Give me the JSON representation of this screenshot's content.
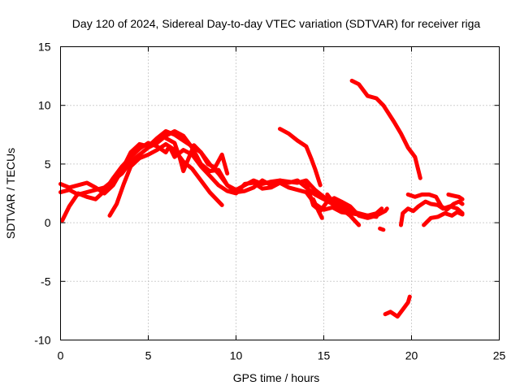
{
  "chart_data": {
    "type": "line",
    "title": "Day 120 of 2024, Sidereal Day-to-day VTEC variation (SDTVAR) for receiver riga",
    "xlabel": "GPS time / hours",
    "ylabel": "SDTVAR / TECUs",
    "xlim": [
      0,
      25
    ],
    "ylim": [
      -10,
      15
    ],
    "xticks": [
      0,
      5,
      10,
      15,
      20,
      25
    ],
    "yticks": [
      -10,
      -5,
      0,
      5,
      10,
      15
    ],
    "grid": true,
    "color": "#ff0000",
    "series": [
      {
        "name": "s1",
        "points": [
          [
            0.0,
            3.3
          ],
          [
            0.5,
            3.0
          ],
          [
            1.0,
            3.2
          ],
          [
            1.5,
            3.4
          ],
          [
            2.0,
            3.0
          ],
          [
            2.5,
            2.5
          ],
          [
            3.0,
            3.2
          ],
          [
            3.5,
            4.5
          ],
          [
            4.0,
            6.0
          ],
          [
            4.5,
            6.7
          ],
          [
            5.0,
            6.5
          ],
          [
            5.5,
            7.2
          ],
          [
            6.0,
            7.8
          ],
          [
            6.5,
            7.5
          ],
          [
            7.0,
            7.0
          ],
          [
            7.5,
            6.5
          ],
          [
            8.0,
            6.0
          ],
          [
            8.5,
            5.0
          ],
          [
            9.0,
            4.2
          ],
          [
            9.5,
            3.2
          ],
          [
            10.0,
            2.8
          ],
          [
            10.5,
            3.2
          ],
          [
            11.0,
            3.6
          ],
          [
            11.5,
            3.3
          ],
          [
            12.0,
            3.5
          ],
          [
            12.5,
            3.6
          ],
          [
            13.0,
            3.5
          ],
          [
            13.5,
            3.4
          ],
          [
            14.0,
            3.6
          ],
          [
            14.5,
            2.8
          ],
          [
            15.0,
            2.2
          ],
          [
            15.5,
            1.8
          ],
          [
            16.0,
            1.5
          ],
          [
            16.5,
            1.0
          ],
          [
            17.0,
            0.8
          ],
          [
            17.5,
            0.6
          ],
          [
            18.0,
            0.8
          ],
          [
            18.3,
            1.2
          ]
        ]
      },
      {
        "name": "s2",
        "points": [
          [
            0.0,
            2.6
          ],
          [
            0.5,
            2.8
          ],
          [
            1.0,
            2.4
          ],
          [
            1.5,
            2.6
          ],
          [
            2.0,
            2.8
          ],
          [
            2.5,
            3.0
          ],
          [
            3.0,
            3.6
          ],
          [
            3.5,
            4.2
          ],
          [
            4.0,
            5.2
          ],
          [
            4.5,
            5.8
          ],
          [
            5.0,
            6.4
          ],
          [
            5.5,
            6.8
          ],
          [
            6.0,
            7.4
          ],
          [
            6.5,
            7.8
          ],
          [
            7.0,
            7.4
          ],
          [
            7.5,
            6.4
          ],
          [
            8.0,
            5.0
          ],
          [
            8.5,
            4.4
          ],
          [
            9.0,
            4.5
          ],
          [
            9.5,
            3.2
          ],
          [
            10.0,
            2.6
          ],
          [
            10.5,
            2.7
          ],
          [
            11.0,
            3.0
          ],
          [
            11.5,
            3.6
          ],
          [
            12.0,
            3.2
          ],
          [
            12.5,
            3.6
          ],
          [
            13.0,
            3.4
          ],
          [
            13.5,
            3.6
          ],
          [
            14.0,
            3.0
          ],
          [
            14.5,
            2.4
          ],
          [
            15.0,
            2.0
          ],
          [
            15.5,
            1.6
          ],
          [
            16.0,
            1.2
          ]
        ]
      },
      {
        "name": "s3",
        "points": [
          [
            0.1,
            0.2
          ],
          [
            0.5,
            1.4
          ],
          [
            1.0,
            2.5
          ],
          [
            1.5,
            2.2
          ],
          [
            2.0,
            2.0
          ],
          [
            2.5,
            2.7
          ],
          [
            3.0,
            3.8
          ],
          [
            3.5,
            4.8
          ],
          [
            4.0,
            5.6
          ],
          [
            4.5,
            6.3
          ],
          [
            5.0,
            6.8
          ],
          [
            5.5,
            6.5
          ],
          [
            6.0,
            6.0
          ],
          [
            6.2,
            6.5
          ],
          [
            6.5,
            5.6
          ],
          [
            7.0,
            6.2
          ],
          [
            7.5,
            5.8
          ],
          [
            8.0,
            4.8
          ],
          [
            8.5,
            4.0
          ],
          [
            9.0,
            3.2
          ],
          [
            9.5,
            2.7
          ],
          [
            10.0,
            2.5
          ],
          [
            10.5,
            3.3
          ],
          [
            11.0,
            3.4
          ],
          [
            11.5,
            2.9
          ],
          [
            12.0,
            3.0
          ],
          [
            12.5,
            3.4
          ],
          [
            13.0,
            3.0
          ],
          [
            13.5,
            2.8
          ],
          [
            14.0,
            2.6
          ],
          [
            14.5,
            1.6
          ],
          [
            15.0,
            1.1
          ],
          [
            15.5,
            1.3
          ],
          [
            16.0,
            0.9
          ],
          [
            16.5,
            0.8
          ],
          [
            17.0,
            0.7
          ],
          [
            17.5,
            0.6
          ],
          [
            18.0,
            0.5
          ]
        ]
      },
      {
        "name": "s4",
        "points": [
          [
            2.8,
            0.6
          ],
          [
            3.2,
            1.6
          ],
          [
            3.6,
            3.3
          ],
          [
            4.0,
            4.8
          ],
          [
            4.5,
            5.5
          ],
          [
            5.0,
            5.8
          ],
          [
            5.5,
            6.2
          ],
          [
            6.0,
            6.7
          ],
          [
            6.5,
            6.2
          ],
          [
            7.0,
            5.2
          ],
          [
            7.5,
            4.6
          ],
          [
            8.0,
            3.6
          ],
          [
            8.5,
            2.6
          ],
          [
            9.2,
            1.5
          ]
        ]
      },
      {
        "name": "s5",
        "points": [
          [
            6.0,
            7.2
          ],
          [
            6.5,
            6.8
          ],
          [
            6.8,
            5.5
          ],
          [
            7.0,
            4.4
          ],
          [
            7.3,
            5.5
          ],
          [
            7.6,
            6.6
          ],
          [
            8.0,
            6.0
          ],
          [
            8.4,
            5.0
          ],
          [
            8.8,
            4.7
          ],
          [
            9.2,
            5.8
          ],
          [
            9.5,
            4.2
          ]
        ]
      },
      {
        "name": "s6",
        "points": [
          [
            14.0,
            3.4
          ],
          [
            14.4,
            1.5
          ],
          [
            14.8,
            1.0
          ],
          [
            15.2,
            1.8
          ],
          [
            15.6,
            2.1
          ],
          [
            16.0,
            1.8
          ],
          [
            16.5,
            1.4
          ],
          [
            17.0,
            0.6
          ],
          [
            17.5,
            0.4
          ],
          [
            18.0,
            0.6
          ],
          [
            18.5,
            1.0
          ],
          [
            18.6,
            1.2
          ]
        ]
      },
      {
        "name": "s7",
        "points": [
          [
            15.2,
            2.4
          ],
          [
            15.6,
            1.6
          ],
          [
            16.0,
            1.2
          ],
          [
            16.5,
            0.6
          ],
          [
            17.0,
            -0.2
          ]
        ]
      },
      {
        "name": "s8",
        "points": [
          [
            14.4,
            2.0
          ],
          [
            14.7,
            1.0
          ],
          [
            14.9,
            0.4
          ]
        ]
      },
      {
        "name": "s9",
        "points": [
          [
            12.5,
            8.0
          ],
          [
            13.0,
            7.6
          ],
          [
            13.5,
            7.0
          ],
          [
            14.0,
            6.5
          ],
          [
            14.3,
            5.4
          ],
          [
            14.5,
            4.6
          ],
          [
            14.8,
            3.2
          ]
        ]
      },
      {
        "name": "s10",
        "points": [
          [
            16.6,
            12.1
          ],
          [
            17.0,
            11.8
          ],
          [
            17.5,
            10.8
          ],
          [
            18.0,
            10.6
          ],
          [
            18.4,
            10.0
          ],
          [
            19.0,
            8.6
          ],
          [
            19.4,
            7.6
          ],
          [
            19.8,
            6.4
          ],
          [
            20.2,
            5.6
          ],
          [
            20.5,
            3.8
          ]
        ]
      },
      {
        "name": "s11",
        "points": [
          [
            19.4,
            -0.2
          ],
          [
            19.5,
            0.8
          ],
          [
            19.8,
            1.2
          ],
          [
            20.1,
            1.0
          ],
          [
            20.4,
            1.4
          ],
          [
            20.8,
            1.8
          ],
          [
            21.1,
            1.6
          ],
          [
            21.5,
            1.5
          ],
          [
            21.8,
            1.2
          ],
          [
            22.2,
            1.4
          ],
          [
            22.6,
            1.2
          ],
          [
            22.9,
            0.8
          ]
        ]
      },
      {
        "name": "s12",
        "points": [
          [
            19.8,
            2.4
          ],
          [
            20.2,
            2.2
          ],
          [
            20.6,
            2.4
          ],
          [
            21.0,
            2.4
          ],
          [
            21.4,
            2.2
          ],
          [
            21.7,
            1.4
          ],
          [
            22.0,
            1.1
          ],
          [
            22.4,
            1.6
          ],
          [
            22.7,
            1.8
          ],
          [
            22.9,
            1.6
          ]
        ]
      },
      {
        "name": "s13",
        "points": [
          [
            20.7,
            -0.2
          ],
          [
            21.1,
            0.4
          ],
          [
            21.5,
            0.5
          ],
          [
            21.9,
            0.8
          ],
          [
            22.3,
            0.6
          ],
          [
            22.6,
            0.9
          ],
          [
            22.9,
            0.7
          ]
        ]
      },
      {
        "name": "s14",
        "points": [
          [
            22.1,
            2.4
          ],
          [
            22.4,
            2.3
          ],
          [
            22.7,
            2.2
          ],
          [
            22.9,
            2.0
          ]
        ]
      },
      {
        "name": "s15",
        "points": [
          [
            18.2,
            -0.5
          ],
          [
            18.4,
            -0.6
          ]
        ]
      },
      {
        "name": "s16",
        "points": [
          [
            18.5,
            -7.8
          ],
          [
            18.8,
            -7.6
          ],
          [
            19.2,
            -8.0
          ],
          [
            19.5,
            -7.4
          ],
          [
            19.8,
            -6.8
          ],
          [
            19.9,
            -6.3
          ]
        ]
      }
    ]
  }
}
